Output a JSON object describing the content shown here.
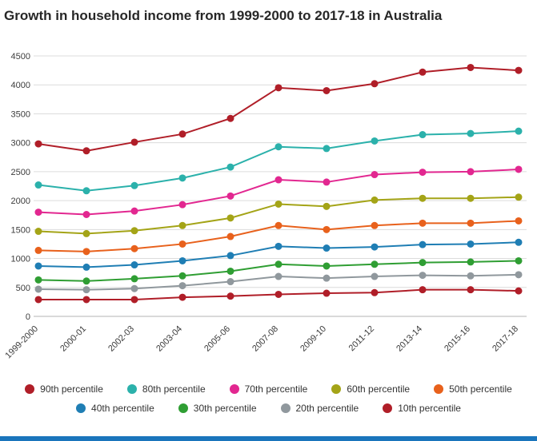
{
  "title": "Growth in household income from 1999-2000 to 2017-18 in Australia",
  "chart_data": {
    "type": "line",
    "title": "Growth in household income from 1999-2000 to 2017-18 in Australia",
    "categories": [
      "1999-2000",
      "2000-01",
      "2002-03",
      "2003-04",
      "2005-06",
      "2007-08",
      "2009-10",
      "2011-12",
      "2013-14",
      "2015-16",
      "2017-18"
    ],
    "series": [
      {
        "name": "90th percentile",
        "color": "#b01e28",
        "values": [
          2980,
          2860,
          3010,
          3150,
          3420,
          3950,
          3900,
          4020,
          4220,
          4300,
          4250
        ]
      },
      {
        "name": "80th percentile",
        "color": "#2bb1ab",
        "values": [
          2270,
          2170,
          2260,
          2390,
          2580,
          2930,
          2900,
          3030,
          3140,
          3160,
          3200
        ]
      },
      {
        "name": "70th percentile",
        "color": "#e22790",
        "values": [
          1800,
          1760,
          1820,
          1930,
          2080,
          2360,
          2320,
          2450,
          2490,
          2500,
          2540
        ]
      },
      {
        "name": "60th percentile",
        "color": "#a4a417",
        "values": [
          1470,
          1430,
          1480,
          1570,
          1700,
          1940,
          1900,
          2010,
          2040,
          2040,
          2060
        ]
      },
      {
        "name": "50th percentile",
        "color": "#e8611c",
        "values": [
          1140,
          1120,
          1170,
          1250,
          1380,
          1570,
          1500,
          1570,
          1610,
          1610,
          1650
        ]
      },
      {
        "name": "40th percentile",
        "color": "#1f7eb4",
        "values": [
          870,
          850,
          890,
          960,
          1050,
          1210,
          1180,
          1200,
          1240,
          1250,
          1280
        ]
      },
      {
        "name": "30th percentile",
        "color": "#2f9e33",
        "values": [
          630,
          610,
          650,
          700,
          780,
          900,
          870,
          900,
          930,
          940,
          960
        ]
      },
      {
        "name": "20th percentile",
        "color": "#90989d",
        "values": [
          470,
          460,
          480,
          530,
          600,
          690,
          660,
          690,
          710,
          700,
          720
        ]
      },
      {
        "name": "10th percentile",
        "color": "#b01e28",
        "values": [
          290,
          290,
          290,
          330,
          350,
          380,
          400,
          410,
          460,
          460,
          440
        ]
      }
    ],
    "xlabel": "",
    "ylabel": "",
    "ylim": [
      0,
      4500
    ],
    "ytick_step": 500,
    "grid": true,
    "legend_position": "bottom",
    "legend_rows": [
      5,
      4
    ],
    "x_label_rotation": -45
  },
  "colors": {
    "gridline": "#dcdcdc",
    "axis_line": "#b3b3b3",
    "tick_label": "#3c3c3c",
    "bottom_accent": "#1a75bc"
  }
}
